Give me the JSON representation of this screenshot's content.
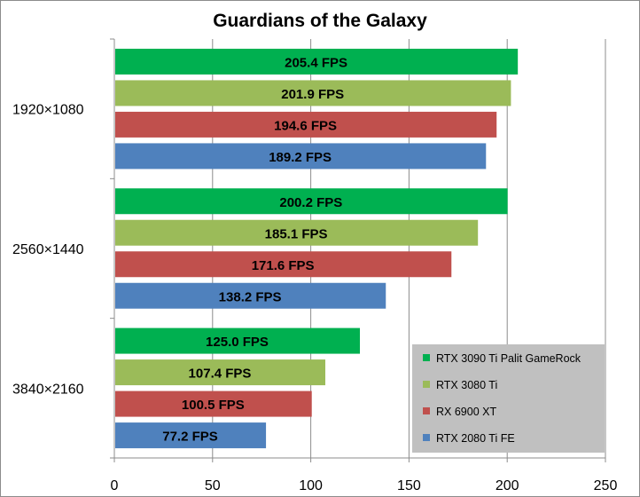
{
  "chart_data": {
    "type": "bar",
    "orientation": "horizontal",
    "title": "Guardians of the Galaxy",
    "categories": [
      "1920×1080",
      "2560×1440",
      "3840×2160"
    ],
    "series": [
      {
        "name": "RTX 3090 Ti Palit GameRock",
        "color": "#00b050",
        "values": [
          205.4,
          200.2,
          125.0
        ],
        "labels": [
          "205.4 FPS",
          "200.2 FPS",
          "125.0 FPS"
        ]
      },
      {
        "name": "RTX 3080 Ti",
        "color": "#9bbb59",
        "values": [
          201.9,
          185.1,
          107.4
        ],
        "labels": [
          "201.9 FPS",
          "185.1 FPS",
          "107.4 FPS"
        ]
      },
      {
        "name": "RX 6900 XT",
        "color": "#c0504d",
        "values": [
          194.6,
          171.6,
          100.5
        ],
        "labels": [
          "194.6 FPS",
          "171.6 FPS",
          "100.5 FPS"
        ]
      },
      {
        "name": "RTX 2080 Ti FE",
        "color": "#4f81bd",
        "values": [
          189.2,
          138.2,
          77.2
        ],
        "labels": [
          "189.2 FPS",
          "138.2 FPS",
          "77.2 FPS"
        ]
      }
    ],
    "xlim": [
      0,
      250
    ],
    "xticks": [
      0,
      50,
      100,
      150,
      200,
      250
    ],
    "xtick_labels": [
      "0",
      "50",
      "100",
      "150",
      "200",
      "250"
    ],
    "grid": true,
    "legend_position": "bottom-right"
  }
}
